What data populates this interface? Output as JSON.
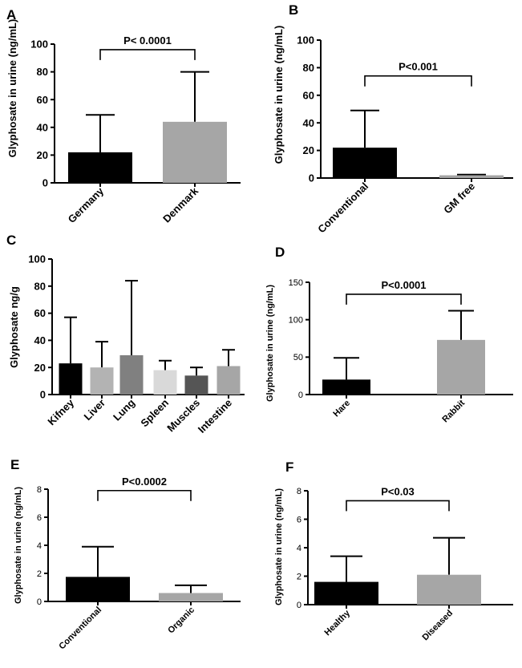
{
  "chart_data": [
    {
      "panel": "A",
      "type": "bar",
      "ylabel": "Glyphosate in urine (ng/mL)",
      "categories": [
        "Germany",
        "Denmark"
      ],
      "values": [
        22,
        44
      ],
      "error_upper": [
        49,
        80
      ],
      "bar_colors": [
        "#000000",
        "#a6a6a6"
      ],
      "yticks": [
        0,
        20,
        40,
        60,
        80,
        100
      ],
      "ylim": [
        0,
        100
      ],
      "significance": {
        "label": "P< 0.0001",
        "from": 0,
        "to": 1,
        "level": 96
      }
    },
    {
      "panel": "B",
      "type": "bar",
      "ylabel": "Glyphosate in urine (ng/mL)",
      "categories": [
        "Conventional",
        "GM free"
      ],
      "values": [
        22,
        2
      ],
      "error_upper": [
        49,
        2.5
      ],
      "bar_colors": [
        "#000000",
        "#a6a6a6"
      ],
      "yticks": [
        0,
        20,
        40,
        60,
        80,
        100
      ],
      "ylim": [
        0,
        100
      ],
      "significance": {
        "label": "P<0.001",
        "from": 0,
        "to": 1,
        "level": 74
      }
    },
    {
      "panel": "C",
      "type": "bar",
      "ylabel": "Glyphosate ng/g",
      "categories": [
        "Kifney",
        "Liver",
        "Lung",
        "Spleen",
        "Muscles",
        "Intestine"
      ],
      "values": [
        23,
        20,
        29,
        18,
        14,
        21
      ],
      "error_upper": [
        57,
        39,
        84,
        25,
        20,
        33
      ],
      "bar_colors": [
        "#000000",
        "#b3b3b3",
        "#808080",
        "#d9d9d9",
        "#555555",
        "#a6a6a6"
      ],
      "yticks": [
        0,
        20,
        40,
        60,
        80,
        100
      ],
      "ylim": [
        0,
        100
      ]
    },
    {
      "panel": "D",
      "type": "bar",
      "ylabel": "Glyphosate in urine (ng/mL)",
      "categories": [
        "Hare",
        "Rabbit"
      ],
      "values": [
        20,
        73
      ],
      "error_upper": [
        49,
        112
      ],
      "bar_colors": [
        "#000000",
        "#a6a6a6"
      ],
      "yticks": [
        0,
        50,
        100,
        150
      ],
      "ylim": [
        0,
        150
      ],
      "significance": {
        "label": "P<0.0001",
        "from": 0,
        "to": 1,
        "level": 134
      }
    },
    {
      "panel": "E",
      "type": "bar",
      "ylabel": "Glyphosate in urine (ng/mL)",
      "categories": [
        "Conventional",
        "Organic"
      ],
      "values": [
        1.75,
        0.6
      ],
      "error_upper": [
        3.9,
        1.15
      ],
      "bar_colors": [
        "#000000",
        "#a6a6a6"
      ],
      "yticks": [
        0,
        2,
        4,
        6,
        8
      ],
      "ylim": [
        0,
        8
      ],
      "significance": {
        "label": "P<0.0002",
        "from": 0,
        "to": 1,
        "level": 7.9
      }
    },
    {
      "panel": "F",
      "type": "bar",
      "ylabel": "Glyphosate in urine (ng/mL)",
      "categories": [
        "Healthy",
        "Diseased"
      ],
      "values": [
        1.6,
        2.1
      ],
      "error_upper": [
        3.4,
        4.7
      ],
      "bar_colors": [
        "#000000",
        "#a6a6a6"
      ],
      "yticks": [
        0,
        2,
        4,
        6,
        8
      ],
      "ylim": [
        0,
        8
      ],
      "significance": {
        "label": "P<0.03",
        "from": 0,
        "to": 1,
        "level": 7.3
      }
    }
  ]
}
